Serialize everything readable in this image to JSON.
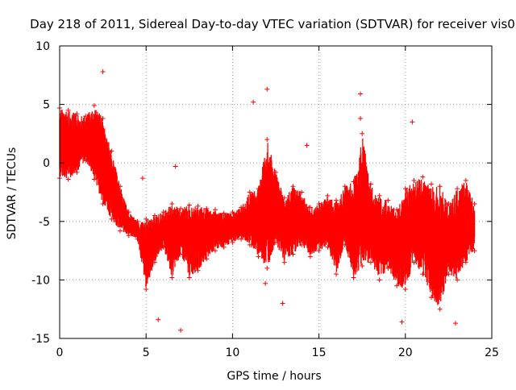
{
  "chart_data": {
    "type": "scatter",
    "title": "Day 218 of 2011, Sidereal Day-to-day VTEC variation (SDTVAR) for receiver vis0",
    "xlabel": "GPS time / hours",
    "ylabel": "SDTVAR / TECUs",
    "xlim": [
      0,
      25
    ],
    "ylim": [
      -15,
      10
    ],
    "xticks": [
      0,
      5,
      10,
      15,
      20,
      25
    ],
    "yticks": [
      -15,
      -10,
      -5,
      0,
      5,
      10
    ],
    "grid": true,
    "marker": "+",
    "color": "#ff0000",
    "series": [
      {
        "name": "SDTVAR",
        "x": [
          0.0,
          0.5,
          1.0,
          1.5,
          2.0,
          2.5,
          3.0,
          3.5,
          4.0,
          4.5,
          5.0,
          5.5,
          6.0,
          6.5,
          7.0,
          7.5,
          8.0,
          8.5,
          9.0,
          9.5,
          10.0,
          10.5,
          11.0,
          11.5,
          12.0,
          12.5,
          13.0,
          13.5,
          14.0,
          14.5,
          15.0,
          15.5,
          16.0,
          16.5,
          17.0,
          17.5,
          18.0,
          18.5,
          19.0,
          19.5,
          20.0,
          20.5,
          21.0,
          21.5,
          22.0,
          22.5,
          23.0,
          23.5,
          24.0
        ],
        "upper": [
          4.7,
          4.5,
          4.2,
          4.0,
          4.9,
          3.8,
          1.0,
          -2.0,
          -4.2,
          -5.0,
          -4.8,
          -4.5,
          -4.2,
          -3.5,
          -3.9,
          -3.6,
          -3.7,
          -3.9,
          -4.0,
          -4.3,
          -4.2,
          -3.8,
          -2.5,
          -2.2,
          2.0,
          -0.8,
          -3.0,
          -2.0,
          -2.5,
          -3.8,
          -3.5,
          -2.8,
          -3.2,
          -2.0,
          -1.6,
          2.5,
          -1.8,
          -2.8,
          -3.2,
          -4.0,
          -2.2,
          -1.5,
          -1.2,
          -1.8,
          -2.0,
          -3.5,
          -2.2,
          -1.5,
          -3.5
        ],
        "lower": [
          -1.3,
          -1.4,
          -0.8,
          0.2,
          -1.4,
          -3.5,
          -4.8,
          -5.8,
          -6.2,
          -6.5,
          -10.8,
          -8.5,
          -7.2,
          -9.8,
          -7.8,
          -9.8,
          -9.2,
          -8.2,
          -7.5,
          -7.2,
          -6.8,
          -6.5,
          -7.0,
          -8.0,
          -9.0,
          -6.8,
          -8.5,
          -7.8,
          -7.0,
          -8.0,
          -7.5,
          -7.2,
          -9.5,
          -7.0,
          -9.8,
          -8.8,
          -8.5,
          -10.0,
          -9.0,
          -10.5,
          -10.8,
          -8.5,
          -9.5,
          -11.5,
          -12.5,
          -9.5,
          -10.0,
          -8.5,
          -7.5
        ],
        "x_outliers": [
          2.5,
          5.7,
          7.0,
          11.2,
          11.9,
          12.0,
          12.9,
          14.3,
          17.4,
          19.8,
          20.4,
          22.9,
          17.4,
          4.8,
          6.7
        ],
        "y_outliers": [
          7.8,
          -13.4,
          -14.3,
          5.2,
          -10.3,
          6.3,
          -12.0,
          1.5,
          5.9,
          -13.6,
          3.5,
          -13.7,
          3.8,
          -1.3,
          -0.3
        ]
      }
    ]
  }
}
